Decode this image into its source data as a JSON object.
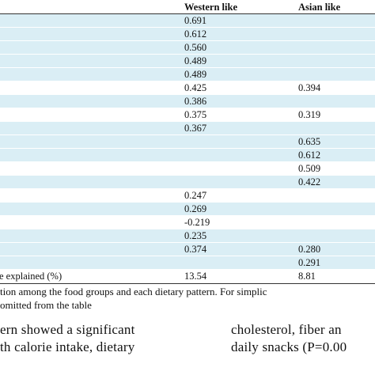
{
  "table": {
    "headers": [
      "Western like",
      "Asian like"
    ],
    "rows": [
      {
        "label": "",
        "v1": "0.691",
        "v2": "",
        "shaded": true
      },
      {
        "label": "",
        "v1": "0.612",
        "v2": "",
        "shaded": true
      },
      {
        "label": "",
        "v1": "0.560",
        "v2": "",
        "shaded": true
      },
      {
        "label": "",
        "v1": "0.489",
        "v2": "",
        "shaded": true
      },
      {
        "label": "",
        "v1": "0.489",
        "v2": "",
        "shaded": true
      },
      {
        "label": "",
        "v1": "0.425",
        "v2": "0.394",
        "shaded": false
      },
      {
        "label": "",
        "v1": "0.386",
        "v2": "",
        "shaded": true
      },
      {
        "label": "",
        "v1": "0.375",
        "v2": "0.319",
        "shaded": false
      },
      {
        "label": "",
        "v1": "0.367",
        "v2": "",
        "shaded": true
      },
      {
        "label": "",
        "v1": "",
        "v2": "0.635",
        "shaded": true
      },
      {
        "label": "",
        "v1": "",
        "v2": "0.612",
        "shaded": true
      },
      {
        "label": "",
        "v1": "",
        "v2": "0.509",
        "shaded": false
      },
      {
        "label": "",
        "v1": "",
        "v2": "0.422",
        "shaded": true
      },
      {
        "label": "",
        "v1": "0.247",
        "v2": "",
        "shaded": false
      },
      {
        "label": "",
        "v1": "0.269",
        "v2": "",
        "shaded": true
      },
      {
        "label": "",
        "v1": "-0.219",
        "v2": "",
        "shaded": false
      },
      {
        "label": "",
        "v1": "0.235",
        "v2": "",
        "shaded": true
      },
      {
        "label": "",
        "v1": "0.374",
        "v2": "0.280",
        "shaded": true
      },
      {
        "label": "",
        "v1": "",
        "v2": "0.291",
        "shaded": true
      },
      {
        "label": "e explained (%)",
        "v1": "13.54",
        "v2": "8.81",
        "shaded": false
      }
    ]
  },
  "footnote": {
    "line1": "tion among the food groups and each dietary pattern. For simplic",
    "line2": "omitted from the table"
  },
  "body": {
    "left_line1": "ern showed a significant",
    "left_line2": "th calorie intake, dietary",
    "right_line1": "cholesterol, fiber an",
    "right_line2": "daily snacks (P=0.00"
  }
}
